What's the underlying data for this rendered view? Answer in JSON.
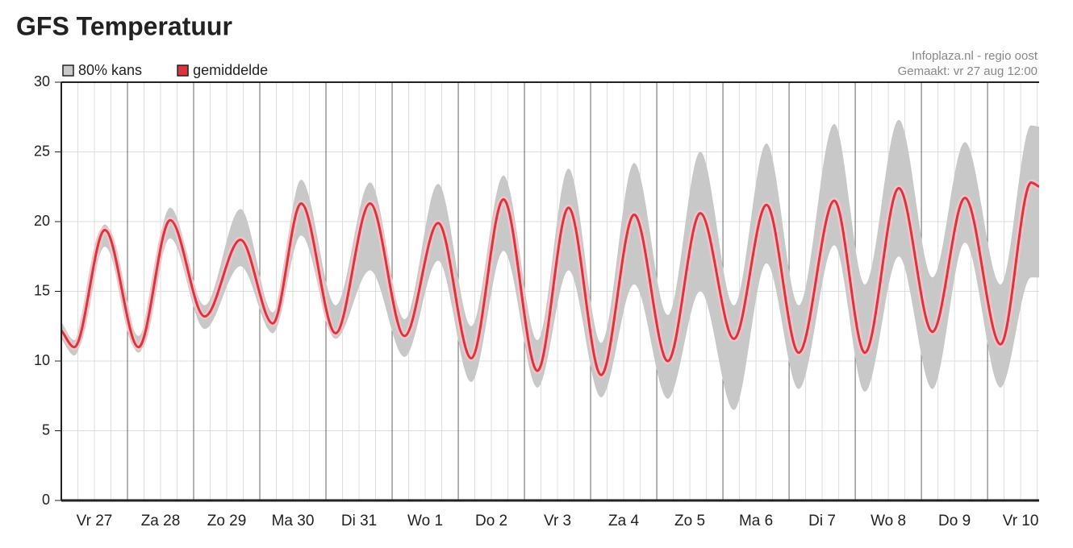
{
  "chart_data": {
    "type": "line",
    "title": "GFS Temperatuur",
    "annotations": [
      "Infoplaza.nl - regio oost",
      "Gemaakt: vr 27 aug 12:00"
    ],
    "x": [
      0,
      4.7,
      15.8,
      28,
      39.5,
      52,
      65,
      76.7,
      87,
      99.5,
      112,
      124.5,
      136.7,
      148.7,
      160.4,
      172.7,
      184,
      195.8,
      207.8,
      220,
      231.8,
      244,
      255.8,
      267.5,
      280.4,
      291.5,
      303.8,
      316,
      327.8,
      340.7,
      351.8,
      354.7
    ],
    "series": [
      {
        "name": "80% kans",
        "color": "#c8c8c8",
        "low": [
          11.6,
          10.4,
          18.2,
          10.6,
          18.8,
          12.3,
          16.8,
          12.0,
          19.0,
          11.6,
          16.5,
          10.3,
          17.2,
          8.5,
          17.9,
          8.1,
          16.5,
          7.4,
          15.5,
          7.3,
          15.0,
          6.5,
          17.0,
          8.0,
          18.3,
          7.8,
          17.5,
          8.0,
          18.5,
          8.1,
          16.0,
          16.0
        ],
        "high": [
          12.8,
          11.5,
          19.8,
          11.8,
          21.0,
          14.0,
          20.9,
          13.5,
          23.0,
          14.0,
          22.8,
          13.0,
          22.7,
          12.5,
          23.3,
          11.5,
          23.8,
          11.3,
          24.2,
          13.3,
          25.0,
          14.0,
          25.6,
          14.0,
          27.0,
          15.5,
          27.3,
          16.0,
          25.7,
          15.5,
          26.9,
          26.8
        ]
      },
      {
        "name": "gemiddelde",
        "color": "#d9343f",
        "values": [
          12.2,
          11.0,
          19.4,
          11.0,
          20.1,
          13.2,
          18.7,
          12.7,
          21.3,
          12.0,
          21.3,
          11.8,
          19.9,
          10.2,
          21.6,
          9.3,
          21.0,
          9.0,
          20.5,
          10.0,
          20.6,
          11.6,
          21.2,
          10.6,
          21.5,
          10.6,
          22.4,
          12.1,
          21.7,
          11.2,
          22.8,
          22.5
        ]
      }
    ],
    "xlim": [
      0,
      354.7
    ],
    "xticks": [
      {
        "value": 12,
        "label": "Vr 27"
      },
      {
        "value": 36,
        "label": "Za 28"
      },
      {
        "value": 60,
        "label": "Zo 29"
      },
      {
        "value": 84,
        "label": "Ma 30"
      },
      {
        "value": 108,
        "label": "Di 31"
      },
      {
        "value": 132,
        "label": "Wo 1"
      },
      {
        "value": 156,
        "label": "Do 2"
      },
      {
        "value": 180,
        "label": "Vr 3"
      },
      {
        "value": 204,
        "label": "Za 4"
      },
      {
        "value": 228,
        "label": "Zo 5"
      },
      {
        "value": 252,
        "label": "Ma 6"
      },
      {
        "value": 276,
        "label": "Di 7"
      },
      {
        "value": 300,
        "label": "Wo 8"
      },
      {
        "value": 324,
        "label": "Do 9"
      },
      {
        "value": 348,
        "label": "Vr 10"
      }
    ],
    "ylim": [
      0,
      30
    ],
    "yticks": [
      0,
      5,
      10,
      15,
      20,
      25,
      30
    ],
    "grid": true
  }
}
